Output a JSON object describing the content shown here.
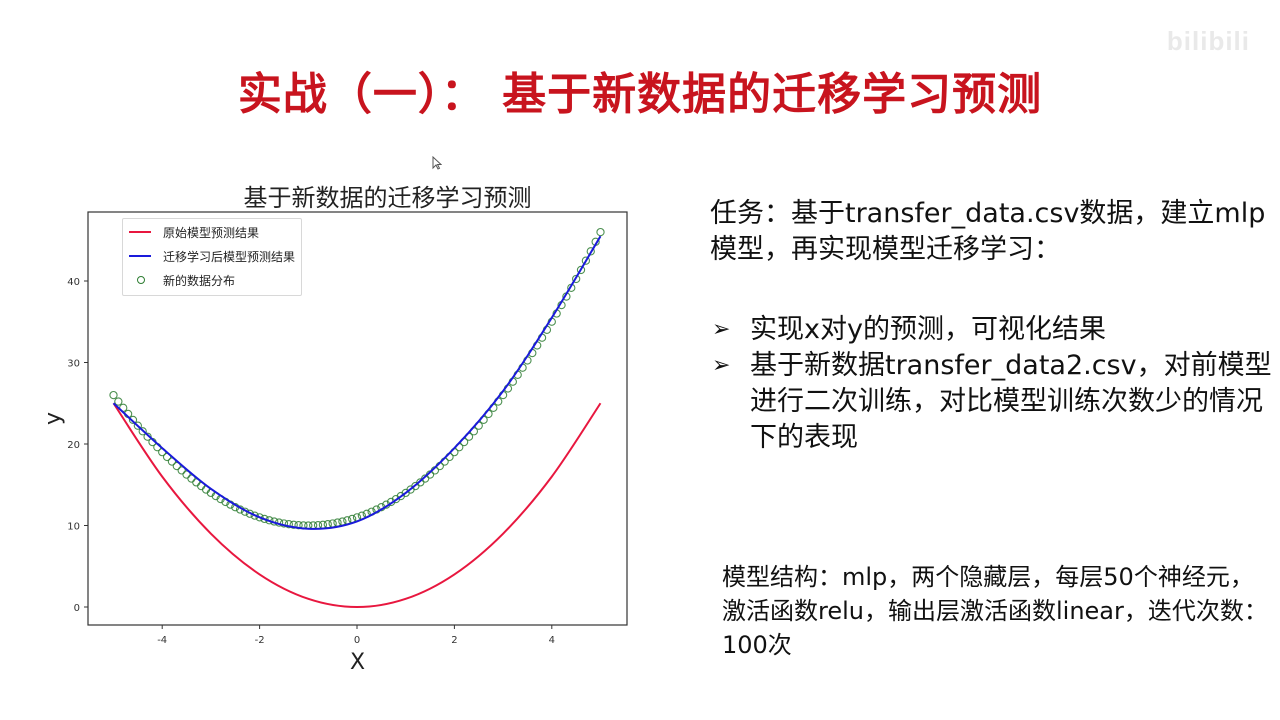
{
  "slide": {
    "title": "实战（一）：  基于新数据的迁移学习预测",
    "title_color": "#c8141e",
    "watermark": "bilibili"
  },
  "figure": {
    "title": "基于新数据的迁移学习预测",
    "legend": [
      {
        "label": "原始模型预测结果",
        "color": "#e8173f",
        "kind": "line"
      },
      {
        "label": "迁移学习后模型预测结果",
        "color": "#1a1adb",
        "kind": "line"
      },
      {
        "label": "新的数据分布",
        "color": "#2e7d32",
        "kind": "marker"
      }
    ],
    "xlabel": "X",
    "ylabel": "y"
  },
  "chart_data": {
    "type": "line",
    "title": "基于新数据的迁移学习预测",
    "xlabel": "X",
    "ylabel": "y",
    "xlim": [
      -5.4,
      5.4
    ],
    "ylim": [
      -2.2,
      48
    ],
    "xticks": [
      -4,
      -2,
      0,
      2,
      4
    ],
    "yticks": [
      0,
      10,
      20,
      30,
      40
    ],
    "grid": false,
    "legend_position": "upper left",
    "x": [
      -5,
      -4,
      -3,
      -2,
      -1,
      0,
      1,
      2,
      3,
      4,
      5
    ],
    "series": [
      {
        "name": "原始模型预测结果",
        "color": "#e8173f",
        "style": "line",
        "values": [
          25,
          16,
          9,
          4,
          1,
          0,
          1,
          4,
          9,
          16,
          25
        ]
      },
      {
        "name": "迁移学习后模型预测结果",
        "color": "#1a1adb",
        "style": "line",
        "values": [
          25,
          19.5,
          14.5,
          11,
          9.6,
          10.5,
          14,
          19.5,
          26.5,
          35.5,
          45.5
        ]
      },
      {
        "name": "新的数据分布",
        "color": "#2e7d32",
        "style": "scatter-open-circle",
        "values": [
          26,
          19,
          14,
          11,
          10,
          11,
          14,
          19,
          26,
          35,
          46
        ]
      }
    ]
  },
  "task": {
    "text": "任务：基于transfer_data.csv数据，建立mlp模型，再实现模型迁移学习："
  },
  "bullets": [
    {
      "icon": "arrow-bullet-icon",
      "glyph": "➢",
      "text": "实现x对y的预测，可视化结果"
    },
    {
      "icon": "arrow-bullet-icon",
      "glyph": "➢",
      "text": "基于新数据transfer_data2.csv，对前模型进行二次训练，对比模型训练次数少的情况下的表现"
    }
  ],
  "model": {
    "text": "模型结构：mlp，两个隐藏层，每层50个神经元，激活函数relu，输出层激活函数linear，迭代次数：100次"
  }
}
